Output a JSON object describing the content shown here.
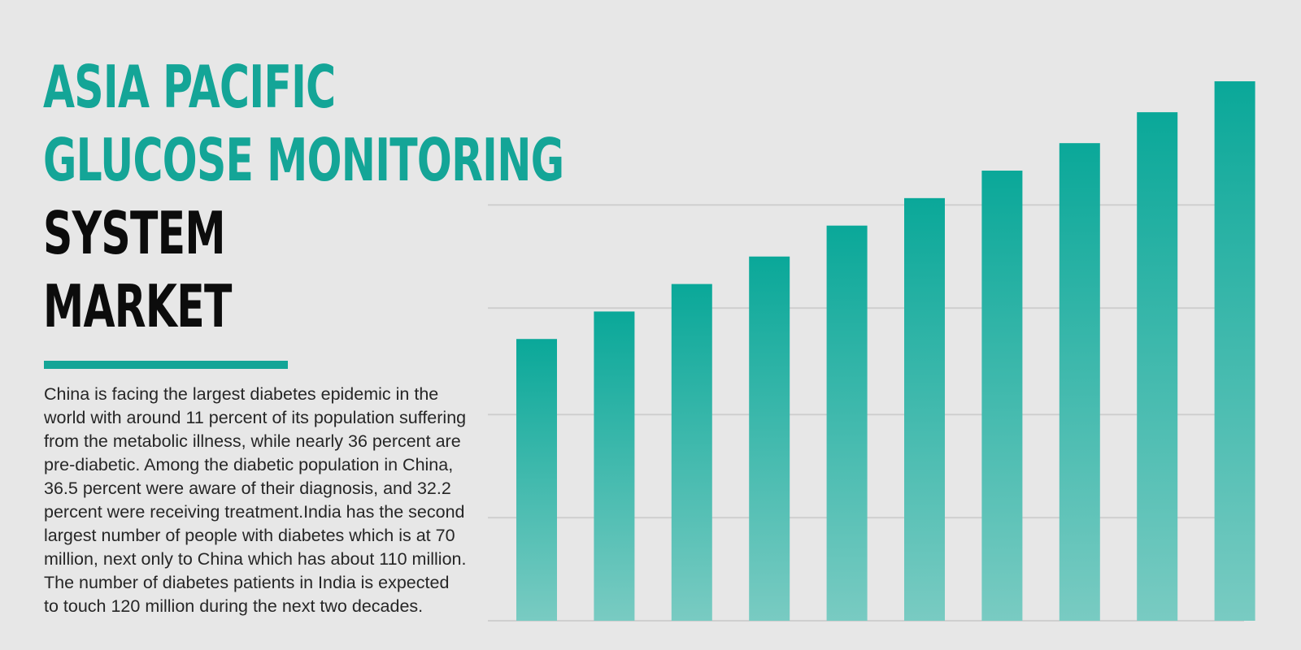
{
  "heading": {
    "line1": "ASIA PACIFIC",
    "line2": "GLUCOSE MONITORING",
    "line3": "SYSTEM",
    "line4": "MARKET"
  },
  "description": "China is facing the largest diabetes epidemic in the world with around 11 percent of its population suffering from the metabolic illness, while nearly 36 percent are pre-diabetic. Among the diabetic population in China, 36.5 percent were aware of their diagnosis, and 32.2 percent were receiving treatment.India has the second largest number of people with diabetes which is at 70 million, next only to China which has about 110 million. The number of diabetes patients in India is expected to touch 120 million during the next two decades.",
  "colors": {
    "accent": "#14a597",
    "bar_top": "#0aa899",
    "bar_bottom": "#79cbc2",
    "gridline": "#cfcfcf",
    "background": "#e7e7e7"
  },
  "chart_data": {
    "type": "bar",
    "values": [
      4.1,
      4.5,
      4.9,
      5.3,
      5.75,
      6.15,
      6.55,
      6.95,
      7.4,
      7.85
    ],
    "ylim": [
      0,
      8.3
    ],
    "gridlines": [
      1.5,
      3.0,
      4.55,
      6.05
    ],
    "grid": true,
    "legend": "none"
  }
}
